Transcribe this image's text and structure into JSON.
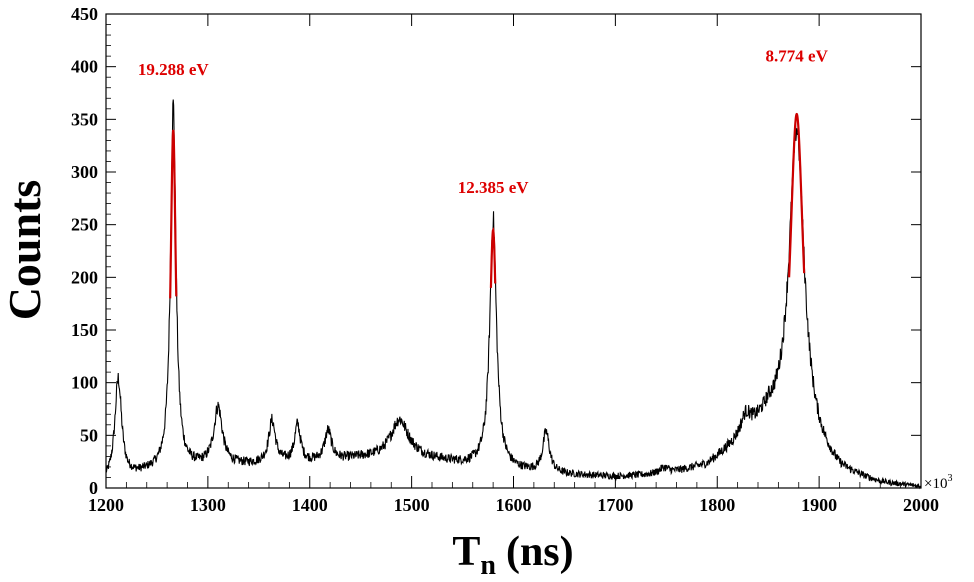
{
  "chart_data": {
    "type": "line",
    "title": "",
    "xlabel": "T",
    "xlabel_sub": "n",
    "xlabel_unit": "(ns)",
    "ylabel": "Counts",
    "x_multiplier": "×10",
    "x_multiplier_exp": "3",
    "xlim": [
      1200,
      2000
    ],
    "ylim": [
      0,
      450
    ],
    "xticks": [
      1200,
      1300,
      1400,
      1500,
      1600,
      1700,
      1800,
      1900,
      2000
    ],
    "yticks": [
      0,
      50,
      100,
      150,
      200,
      250,
      300,
      350,
      400,
      450
    ],
    "grid": false,
    "line_color": "#000000",
    "fit_color": "#cc0000",
    "baseline": [
      [
        1200,
        5
      ],
      [
        1240,
        14
      ],
      [
        1300,
        20
      ],
      [
        1350,
        22
      ],
      [
        1400,
        24
      ],
      [
        1450,
        28
      ],
      [
        1500,
        30
      ],
      [
        1550,
        22
      ],
      [
        1600,
        16
      ],
      [
        1650,
        12
      ],
      [
        1700,
        10
      ],
      [
        1750,
        12
      ],
      [
        1790,
        20
      ],
      [
        1820,
        40
      ],
      [
        1850,
        60
      ],
      [
        1880,
        40
      ],
      [
        1920,
        12
      ],
      [
        1960,
        3
      ],
      [
        2000,
        0
      ]
    ],
    "peaks": [
      {
        "center": 1212,
        "height": 95,
        "width": 4
      },
      {
        "center": 1266,
        "height": 345,
        "width": 3.2
      },
      {
        "center": 1310,
        "height": 55,
        "width": 5
      },
      {
        "center": 1363,
        "height": 40,
        "width": 4
      },
      {
        "center": 1388,
        "height": 35,
        "width": 3.5
      },
      {
        "center": 1418,
        "height": 28,
        "width": 4
      },
      {
        "center": 1488,
        "height": 35,
        "width": 10
      },
      {
        "center": 1580,
        "height": 235,
        "width": 4
      },
      {
        "center": 1632,
        "height": 38,
        "width": 4
      },
      {
        "center": 1748,
        "height": 6,
        "width": 6
      },
      {
        "center": 1828,
        "height": 18,
        "width": 6
      },
      {
        "center": 1878,
        "height": 300,
        "width": 9
      }
    ],
    "fits": [
      {
        "center": 1266,
        "width": 3.2,
        "height": 340,
        "from": 180
      },
      {
        "center": 1580,
        "width": 4,
        "height": 245,
        "from": 190
      },
      {
        "center": 1878,
        "width": 8.5,
        "height": 355,
        "from": 200
      }
    ],
    "annotations": [
      {
        "text": "19.288 eV",
        "x": 1266,
        "y": 392,
        "color": "#dd0000"
      },
      {
        "text": "12.385 eV",
        "x": 1580,
        "y": 280,
        "color": "#dd0000"
      },
      {
        "text": "8.774 eV",
        "x": 1878,
        "y": 405,
        "color": "#dd0000"
      }
    ]
  }
}
